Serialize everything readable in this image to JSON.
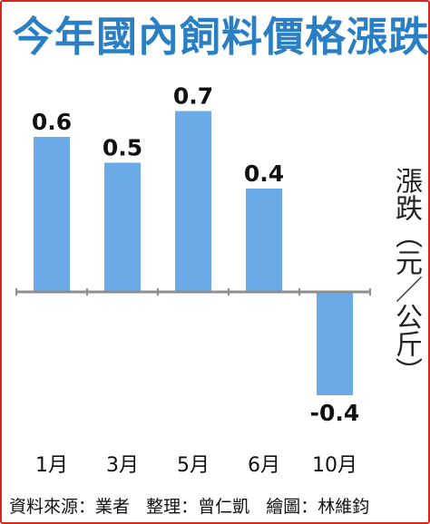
{
  "header": {
    "title": "今年國內飼料價格漲跌"
  },
  "chart_data": {
    "type": "bar",
    "title": "今年國內飼料價格漲跌",
    "categories": [
      "1月",
      "3月",
      "5月",
      "6月",
      "10月"
    ],
    "values": [
      0.6,
      0.5,
      0.7,
      0.4,
      -0.4
    ],
    "value_labels": [
      "0.6",
      "0.5",
      "0.7",
      "0.4",
      "-0.4"
    ],
    "ylabel": "漲跌（元／公斤）",
    "xlabel": "",
    "ylim": [
      -0.6,
      0.7
    ],
    "grid": false,
    "colors": {
      "bar": "#6aaae6",
      "axis": "#8e8e8e",
      "title": "#2a7fc4",
      "frame": "#d9261c"
    }
  },
  "footer": {
    "source": "資料來源：業者",
    "editor": "整理：曾仁凱",
    "artist": "繪圖：林維鈞"
  }
}
